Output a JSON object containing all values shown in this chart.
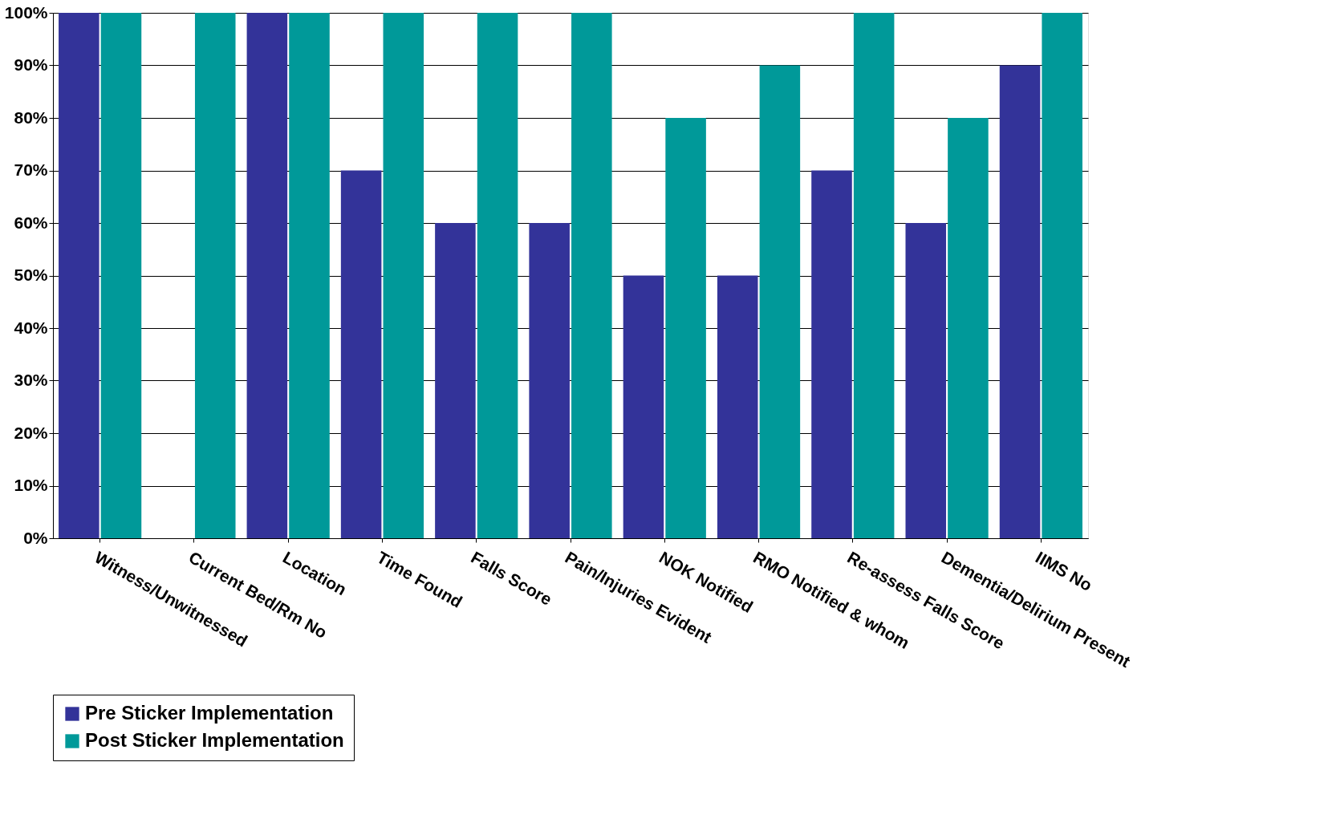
{
  "chart_data": {
    "type": "bar",
    "categories": [
      "Witness/Unwitnessed",
      "Current Bed/Rm No",
      "Location",
      "Time Found",
      "Falls Score",
      "Pain/Injuries Evident",
      "NOK Notified",
      "RMO Notified & whom",
      "Re-assess Falls Score",
      "Dementia/Delirium Present",
      "IIMS No"
    ],
    "series": [
      {
        "name": "Pre Sticker Implementation",
        "color": "#333399",
        "values": [
          100,
          0,
          100,
          70,
          60,
          60,
          50,
          50,
          70,
          60,
          90
        ]
      },
      {
        "name": "Post Sticker Implementation",
        "color": "#009999",
        "values": [
          100,
          100,
          100,
          100,
          100,
          100,
          80,
          90,
          100,
          80,
          100
        ]
      }
    ],
    "ylim": [
      0,
      100
    ],
    "yticks": [
      {
        "value": 0,
        "label": "0%"
      },
      {
        "value": 10,
        "label": "10%"
      },
      {
        "value": 20,
        "label": "20%"
      },
      {
        "value": 30,
        "label": "30%"
      },
      {
        "value": 40,
        "label": "40%"
      },
      {
        "value": 50,
        "label": "50%"
      },
      {
        "value": 60,
        "label": "60%"
      },
      {
        "value": 70,
        "label": "70%"
      },
      {
        "value": 80,
        "label": "80%"
      },
      {
        "value": 90,
        "label": "90%"
      },
      {
        "value": 100,
        "label": "100%"
      }
    ],
    "grid": "y",
    "legend": "bottom"
  }
}
